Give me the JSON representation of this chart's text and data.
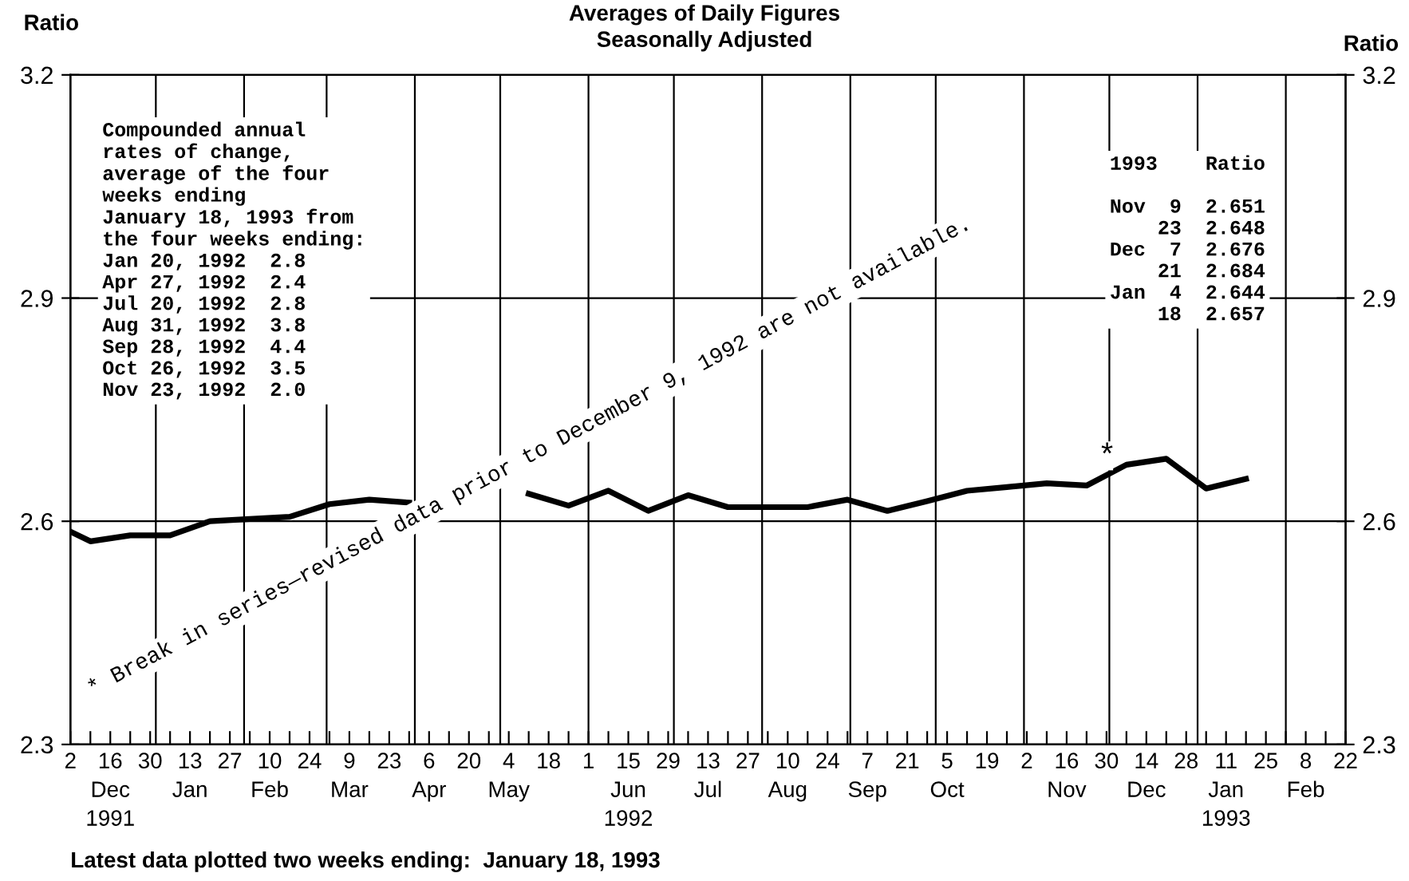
{
  "chart_data": {
    "type": "line",
    "title": "Averages of Daily Figures",
    "subtitle": "Seasonally Adjusted",
    "ylabel": "Ratio",
    "y2label": "Ratio",
    "x": [
      "1991-12-02",
      "1991-12-09",
      "1991-12-23",
      "1992-01-06",
      "1992-01-20",
      "1992-02-03",
      "1992-02-17",
      "1992-03-02",
      "1992-03-16",
      "1992-03-30",
      "1992-04-13",
      "1992-04-27",
      "1992-05-11",
      "1992-05-25",
      "1992-06-08",
      "1992-06-22",
      "1992-07-06",
      "1992-07-20",
      "1992-08-03",
      "1992-08-17",
      "1992-08-31",
      "1992-09-14",
      "1992-09-28",
      "1992-10-12",
      "1992-10-26",
      "1992-11-09",
      "1992-11-23",
      "1992-12-07",
      "1992-12-21",
      "1993-01-04",
      "1993-01-18"
    ],
    "series": [
      {
        "color": "#000000",
        "values": [
          2.586,
          2.573,
          2.581,
          2.581,
          2.6,
          2.603,
          2.606,
          2.623,
          2.629,
          2.625,
          null,
          null,
          2.637,
          2.621,
          2.641,
          2.614,
          2.635,
          2.619,
          2.619,
          2.619,
          2.629,
          2.614,
          2.627,
          2.641,
          2.646,
          2.651,
          2.648,
          2.676,
          2.684,
          2.644,
          2.657
        ]
      }
    ],
    "xlim": [
      "1991-12-02",
      "1993-02-22"
    ],
    "xticks": [
      {
        "value": "1991-12-02",
        "label": "2"
      },
      {
        "value": "1991-12-09",
        "label": null
      },
      {
        "value": "1991-12-16",
        "label": "16\nDec\n1991"
      },
      {
        "value": "1991-12-23",
        "label": null
      },
      {
        "value": "1991-12-30",
        "label": "30"
      },
      {
        "value": "1992-01-06",
        "label": null
      },
      {
        "value": "1992-01-13",
        "label": "13\nJan"
      },
      {
        "value": "1992-01-20",
        "label": null
      },
      {
        "value": "1992-01-27",
        "label": "27"
      },
      {
        "value": "1992-02-03",
        "label": null
      },
      {
        "value": "1992-02-10",
        "label": "10\nFeb"
      },
      {
        "value": "1992-02-17",
        "label": null
      },
      {
        "value": "1992-02-24",
        "label": "24"
      },
      {
        "value": "1992-03-02",
        "label": null
      },
      {
        "value": "1992-03-09",
        "label": "9\nMar"
      },
      {
        "value": "1992-03-16",
        "label": null
      },
      {
        "value": "1992-03-23",
        "label": "23"
      },
      {
        "value": "1992-03-30",
        "label": null
      },
      {
        "value": "1992-04-06",
        "label": "6\nApr"
      },
      {
        "value": "1992-04-13",
        "label": null
      },
      {
        "value": "1992-04-20",
        "label": "20"
      },
      {
        "value": "1992-04-27",
        "label": null
      },
      {
        "value": "1992-05-04",
        "label": "4\nMay"
      },
      {
        "value": "1992-05-11",
        "label": null
      },
      {
        "value": "1992-05-18",
        "label": "18"
      },
      {
        "value": "1992-05-25",
        "label": null
      },
      {
        "value": "1992-06-01",
        "label": "1"
      },
      {
        "value": "1992-06-08",
        "label": null
      },
      {
        "value": "1992-06-15",
        "label": "15\nJun\n1992"
      },
      {
        "value": "1992-06-22",
        "label": null
      },
      {
        "value": "1992-06-29",
        "label": "29"
      },
      {
        "value": "1992-07-06",
        "label": null
      },
      {
        "value": "1992-07-13",
        "label": "13\nJul"
      },
      {
        "value": "1992-07-20",
        "label": null
      },
      {
        "value": "1992-07-27",
        "label": "27"
      },
      {
        "value": "1992-08-03",
        "label": null
      },
      {
        "value": "1992-08-10",
        "label": "10\nAug"
      },
      {
        "value": "1992-08-17",
        "label": null
      },
      {
        "value": "1992-08-24",
        "label": "24"
      },
      {
        "value": "1992-08-31",
        "label": null
      },
      {
        "value": "1992-09-07",
        "label": "7\nSep"
      },
      {
        "value": "1992-09-14",
        "label": null
      },
      {
        "value": "1992-09-21",
        "label": "21"
      },
      {
        "value": "1992-09-28",
        "label": null
      },
      {
        "value": "1992-10-05",
        "label": "5\nOct"
      },
      {
        "value": "1992-10-12",
        "label": null
      },
      {
        "value": "1992-10-19",
        "label": "19"
      },
      {
        "value": "1992-10-26",
        "label": null
      },
      {
        "value": "1992-11-02",
        "label": "2"
      },
      {
        "value": "1992-11-09",
        "label": null
      },
      {
        "value": "1992-11-16",
        "label": "16\nNov"
      },
      {
        "value": "1992-11-23",
        "label": null
      },
      {
        "value": "1992-11-30",
        "label": "30"
      },
      {
        "value": "1992-12-07",
        "label": null
      },
      {
        "value": "1992-12-14",
        "label": "14\nDec"
      },
      {
        "value": "1992-12-21",
        "label": null
      },
      {
        "value": "1992-12-28",
        "label": "28"
      },
      {
        "value": "1993-01-04",
        "label": null
      },
      {
        "value": "1993-01-11",
        "label": "11\nJan\n1993"
      },
      {
        "value": "1993-01-18",
        "label": null
      },
      {
        "value": "1993-01-25",
        "label": "25"
      },
      {
        "value": "1993-02-01",
        "label": null
      },
      {
        "value": "1993-02-08",
        "label": "8\nFeb"
      },
      {
        "value": "1993-02-15",
        "label": null
      },
      {
        "value": "1993-02-22",
        "label": "22"
      }
    ],
    "ylim": [
      2.3,
      3.2
    ],
    "yticks": [
      2.3,
      2.6,
      2.9,
      3.2
    ],
    "y2lim": [
      2.3,
      3.2
    ],
    "y2ticks": [
      2.3,
      2.6,
      2.9,
      3.2
    ],
    "grid": "y",
    "marker": "none",
    "line_style": "solid",
    "legend": false,
    "ref_lines": [
      {
        "axis": "x",
        "value": "1992-01-01"
      },
      {
        "axis": "x",
        "value": "1992-02-01"
      },
      {
        "axis": "x",
        "value": "1992-03-01"
      },
      {
        "axis": "x",
        "value": "1992-04-01"
      },
      {
        "axis": "x",
        "value": "1992-05-01"
      },
      {
        "axis": "x",
        "value": "1992-06-01"
      },
      {
        "axis": "x",
        "value": "1992-07-01"
      },
      {
        "axis": "x",
        "value": "1992-08-01"
      },
      {
        "axis": "x",
        "value": "1992-09-01"
      },
      {
        "axis": "x",
        "value": "1992-10-01"
      },
      {
        "axis": "x",
        "value": "1992-11-01"
      },
      {
        "axis": "x",
        "value": "1992-12-01"
      },
      {
        "axis": "x",
        "value": "1993-01-01"
      },
      {
        "axis": "x",
        "value": "1993-02-01"
      }
    ],
    "annotations": [
      "Compounded annual\nrates of change,\naverage of the four\nweeks ending\nJanuary 18, 1993 from\nthe four weeks ending:\nJan 20, 1992  2.8\nApr 27, 1992  2.4\nJul 20, 1992  2.8\nAug 31, 1992  3.8\nSep 28, 1992  4.4\nOct 26, 1992  3.5\nNov 23, 1992  2.0",
      "1993    Ratio\n\nNov  9  2.651\n    23  2.648\nDec  7  2.676\n    21  2.684\nJan  4  2.644\n    18  2.657",
      "* Break in series—revised data prior to December 9, 1992 are not available.",
      {
        "text": "*",
        "x": "1992-12-07",
        "y": 2.676
      },
      "Latest data plotted two weeks ending:  January 18, 1993"
    ]
  }
}
